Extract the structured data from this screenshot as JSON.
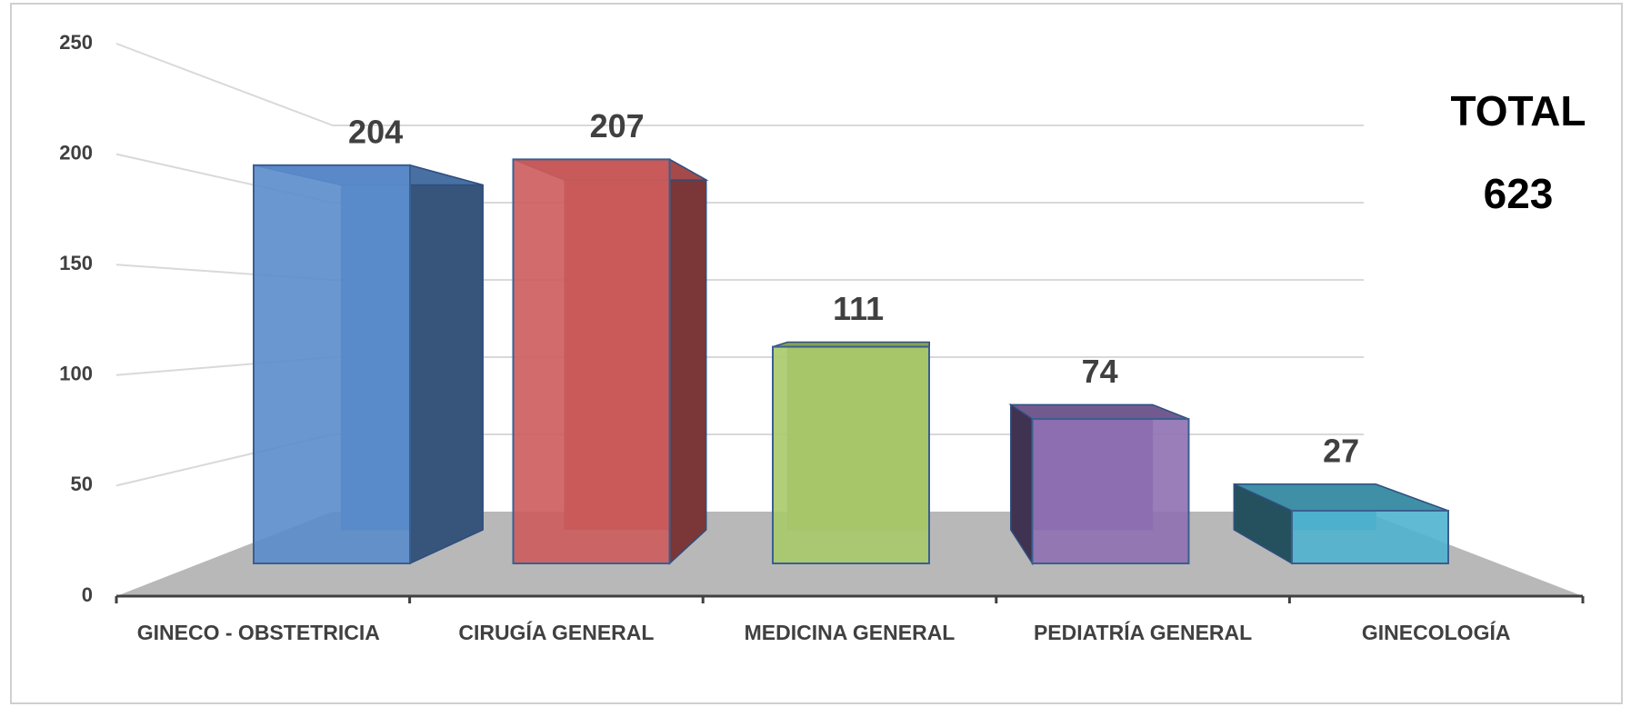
{
  "chart_data": {
    "type": "bar3d",
    "categories": [
      "GINECO - OBSTETRICIA",
      "CIRUGÍA GENERAL",
      "MEDICINA GENERAL",
      "PEDIATRÍA GENERAL",
      "GINECOLOGÍA"
    ],
    "values": [
      204,
      207,
      111,
      74,
      27
    ],
    "colors": [
      "#5b8ccc",
      "#cd5c5c",
      "#a9c96a",
      "#8f70b3",
      "#4fb3cf"
    ],
    "ylim": [
      0,
      250
    ],
    "yticks": [
      0,
      50,
      100,
      150,
      200,
      250
    ],
    "grid": true,
    "annotations": [
      "TOTAL",
      "623"
    ]
  }
}
